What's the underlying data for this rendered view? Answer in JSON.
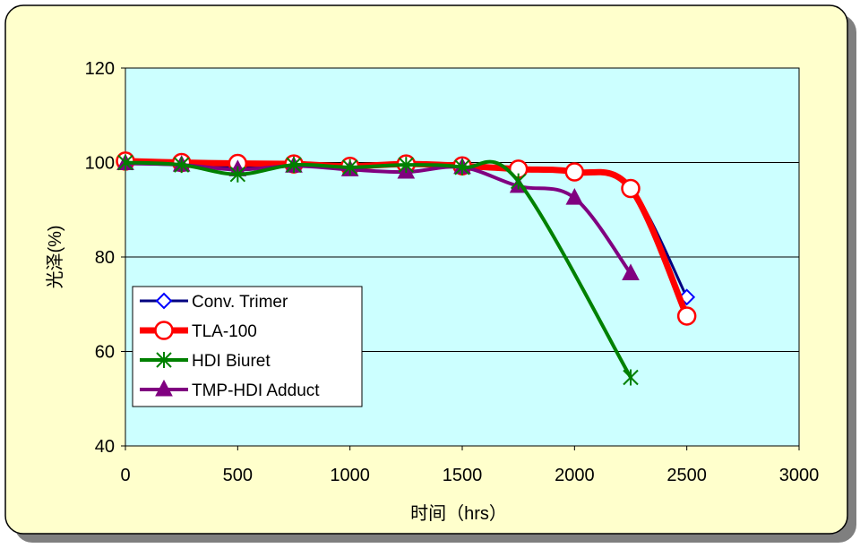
{
  "chart_data": {
    "type": "line",
    "xlabel": "时间（hrs）",
    "ylabel": "光泽(%)",
    "xlim": [
      0,
      3000
    ],
    "ylim": [
      40,
      120
    ],
    "x_ticks": [
      "0",
      "500",
      "1000",
      "1500",
      "2000",
      "2500",
      "3000"
    ],
    "y_ticks": [
      "40",
      "60",
      "80",
      "100",
      "120"
    ],
    "grid": "horizontal",
    "legend_position": "left",
    "colors": {
      "plot_background": "#ccffff",
      "frame_background": "#ffffcc"
    },
    "series": [
      {
        "name": "Conv. Trimer",
        "color": "#000080",
        "marker": "diamond-open",
        "points": [
          [
            0,
            100
          ],
          [
            250,
            100
          ],
          [
            500,
            99
          ],
          [
            750,
            99.5
          ],
          [
            1000,
            99
          ],
          [
            1250,
            99.5
          ],
          [
            1500,
            99.5
          ],
          [
            1750,
            98.5
          ],
          [
            2000,
            98
          ],
          [
            2250,
            94.5
          ],
          [
            2500,
            71.5
          ]
        ]
      },
      {
        "name": "TLA-100",
        "color": "#ff0000",
        "marker": "circle-open",
        "points": [
          [
            0,
            100.3
          ],
          [
            250,
            100
          ],
          [
            500,
            99.8
          ],
          [
            750,
            99.7
          ],
          [
            1000,
            99.2
          ],
          [
            1250,
            99.7
          ],
          [
            1500,
            99.3
          ],
          [
            1750,
            98.6
          ],
          [
            2000,
            98
          ],
          [
            2250,
            94.5
          ],
          [
            2500,
            67.5
          ]
        ]
      },
      {
        "name": "HDI Biuret",
        "color": "#008000",
        "marker": "asterisk",
        "points": [
          [
            0,
            100
          ],
          [
            250,
            99.5
          ],
          [
            500,
            97.5
          ],
          [
            750,
            99.5
          ],
          [
            1000,
            99
          ],
          [
            1250,
            99.5
          ],
          [
            1500,
            99
          ],
          [
            1750,
            96
          ],
          [
            2250,
            54.5
          ]
        ]
      },
      {
        "name": "TMP-HDI Adduct",
        "color": "#800080",
        "marker": "triangle",
        "points": [
          [
            0,
            99.8
          ],
          [
            250,
            99.5
          ],
          [
            500,
            98.5
          ],
          [
            750,
            99.3
          ],
          [
            1000,
            98.5
          ],
          [
            1250,
            98
          ],
          [
            1500,
            99
          ],
          [
            1750,
            95
          ],
          [
            2000,
            92.5
          ],
          [
            2250,
            76.5
          ]
        ]
      }
    ]
  }
}
